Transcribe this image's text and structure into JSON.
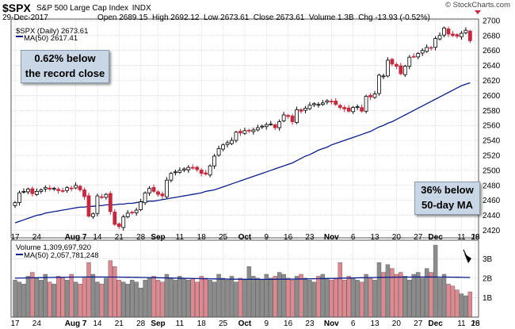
{
  "header": {
    "symbol": "$SPX",
    "name": "S&P 500 Large Cap Index",
    "exchange": "INDX",
    "date": "29-Dec-2017",
    "open": "Open 2689.15",
    "high": "High 2692.12",
    "low": "Low 2673.61",
    "close": "Close 2673.61",
    "volume": "Volume 1.3B",
    "chg": "Chg -13.93 (-0.52%)",
    "watermark": "© StockCharts.com"
  },
  "annotations": {
    "record": [
      "0.62% below",
      "the record close"
    ],
    "ma": [
      "36% below",
      "50-day MA"
    ]
  },
  "colors": {
    "up": "#ffffff",
    "down": "#c8283c",
    "ma": "#0a1e8c",
    "vol_up": "#8c8c8c",
    "vol_down": "#e08890",
    "grid": "#c8c8c8"
  },
  "chart_data": [
    {
      "type": "candlestick",
      "legend": [
        "$SPX (Daily) 2673.61",
        "MA(50) 2617.41"
      ],
      "ylim": [
        2410,
        2702
      ],
      "yticks": [
        2420,
        2440,
        2460,
        2480,
        2500,
        2520,
        2540,
        2560,
        2580,
        2600,
        2620,
        2640,
        2660,
        2680,
        2700
      ],
      "xticks": [
        "17",
        "24",
        "Aug 7",
        "14",
        "21",
        "28",
        "Sep",
        "11",
        "18",
        "25",
        "Oct",
        "9",
        "16",
        "23",
        "Nov",
        "6",
        "13",
        "20",
        "27",
        "Dec",
        "11",
        "18",
        "26"
      ],
      "close": [
        2457,
        2470,
        2472,
        2475,
        2469,
        2472,
        2474,
        2477,
        2475,
        2476,
        2473,
        2472,
        2477,
        2476,
        2480,
        2474,
        2465,
        2439,
        2442,
        2466,
        2464,
        2468,
        2445,
        2428,
        2425,
        2438,
        2443,
        2444,
        2447,
        2458,
        2470,
        2476,
        2472,
        2468,
        2466,
        2487,
        2496,
        2498,
        2500,
        2502,
        2504,
        2503,
        2501,
        2496,
        2495,
        2506,
        2519,
        2529,
        2534,
        2537,
        2540,
        2551,
        2550,
        2553,
        2553,
        2554,
        2557,
        2559,
        2561,
        2562,
        2557,
        2565,
        2574,
        2572,
        2565,
        2581,
        2579,
        2583,
        2587,
        2589,
        2588,
        2590,
        2593,
        2592,
        2588,
        2584,
        2582,
        2579,
        2584,
        2585,
        2579,
        2599,
        2598,
        2602,
        2627,
        2626,
        2647,
        2642,
        2639,
        2629,
        2639,
        2651,
        2652,
        2656,
        2660,
        2664,
        2663,
        2676,
        2680,
        2690,
        2682,
        2680,
        2679,
        2683,
        2687,
        2673
      ],
      "ma50": [
        2430,
        2432,
        2434,
        2436,
        2438,
        2440,
        2441,
        2443,
        2444,
        2445,
        2446,
        2447,
        2448,
        2449,
        2450,
        2451,
        2451,
        2452,
        2452,
        2453,
        2453,
        2454,
        2454,
        2454,
        2455,
        2455,
        2456,
        2456,
        2457,
        2458,
        2458,
        2459,
        2459,
        2460,
        2461,
        2462,
        2463,
        2464,
        2465,
        2466,
        2467,
        2468,
        2469,
        2470,
        2472,
        2473,
        2474,
        2476,
        2478,
        2480,
        2482,
        2484,
        2486,
        2488,
        2490,
        2492,
        2494,
        2496,
        2498,
        2500,
        2502,
        2504,
        2506,
        2508,
        2510,
        2513,
        2516,
        2519,
        2521,
        2524,
        2527,
        2529,
        2531,
        2534,
        2536,
        2538,
        2540,
        2542,
        2544,
        2546,
        2548,
        2550,
        2552,
        2555,
        2558,
        2560,
        2563,
        2565,
        2568,
        2571,
        2574,
        2577,
        2580,
        2583,
        2586,
        2589,
        2592,
        2595,
        2598,
        2601,
        2604,
        2607,
        2610,
        2613,
        2615,
        2617
      ]
    },
    {
      "type": "bar",
      "legend": [
        "Volume 1,309,697,920",
        "MA(50) 2,057,781,248"
      ],
      "ylim": [
        0,
        3.95
      ],
      "yticks": [
        "1B",
        "2B",
        "3B"
      ],
      "volume_billions": [
        1.9,
        1.8,
        1.7,
        2.1,
        2.3,
        2.0,
        1.9,
        2.2,
        1.8,
        1.7,
        2.1,
        2.0,
        1.9,
        2.2,
        1.8,
        1.7,
        2.0,
        2.8,
        2.2,
        1.8,
        1.7,
        2.0,
        2.9,
        2.6,
        1.9,
        1.8,
        1.7,
        1.9,
        1.8,
        1.5,
        1.9,
        2.0,
        2.1,
        1.9,
        1.8,
        2.2,
        2.0,
        1.9,
        2.1,
        2.0,
        1.9,
        2.0,
        1.8,
        2.1,
        2.0,
        1.9,
        1.8,
        2.2,
        2.0,
        1.9,
        2.1,
        1.8,
        2.0,
        1.9,
        2.6,
        2.1,
        2.0,
        1.9,
        2.2,
        2.0,
        2.1,
        2.3,
        2.2,
        2.0,
        1.9,
        2.1,
        2.2,
        2.0,
        1.9,
        1.8,
        2.1,
        2.2,
        2.0,
        1.9,
        2.0,
        2.8,
        1.9,
        2.1,
        2.0,
        1.9,
        1.8,
        2.2,
        2.0,
        1.9,
        2.8,
        2.3,
        2.7,
        2.5,
        2.2,
        2.3,
        2.1,
        1.9,
        2.2,
        2.3,
        2.0,
        2.5,
        2.3,
        3.7,
        2.0,
        2.2,
        1.7,
        1.6,
        1.4,
        1.2,
        1.1,
        1.3
      ]
    }
  ]
}
